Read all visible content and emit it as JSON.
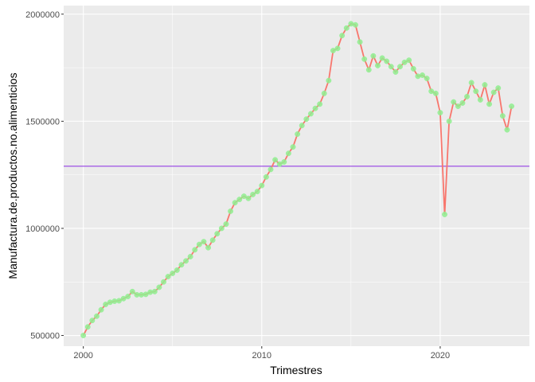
{
  "chart_data": {
    "type": "line",
    "xlabel": "Trimestres",
    "ylabel": "Manufactura.de.productos.no.alimenticios",
    "xlim": [
      1998.9,
      2025.0
    ],
    "ylim": [
      450000,
      2040000
    ],
    "x_ticks": [
      2000,
      2010,
      2020
    ],
    "x_tick_labels": [
      "2000",
      "2010",
      "2020"
    ],
    "y_ticks": [
      500000,
      1000000,
      1500000,
      2000000
    ],
    "y_tick_labels": [
      "500000",
      "1000000",
      "1500000",
      "2000000"
    ],
    "grid": true,
    "reference_line": {
      "y": 1290000,
      "color": "#8a2be2"
    },
    "colors": {
      "panel": "#ebebeb",
      "grid_major": "#ffffff",
      "line": "#f8766d",
      "point": "#90ee90",
      "hline": "#8a2be2"
    },
    "series": [
      {
        "x": [
          2000.0,
          2000.25,
          2000.5,
          2000.75,
          2001.0,
          2001.25,
          2001.5,
          2001.75,
          2002.0,
          2002.25,
          2002.5,
          2002.75,
          2003.0,
          2003.25,
          2003.5,
          2003.75,
          2004.0,
          2004.25,
          2004.5,
          2004.75,
          2005.0,
          2005.25,
          2005.5,
          2005.75,
          2006.0,
          2006.25,
          2006.5,
          2006.75,
          2007.0,
          2007.25,
          2007.5,
          2007.75,
          2008.0,
          2008.25,
          2008.5,
          2008.75,
          2009.0,
          2009.25,
          2009.5,
          2009.75,
          2010.0,
          2010.25,
          2010.5,
          2010.75,
          2011.0,
          2011.25,
          2011.5,
          2011.75,
          2012.0,
          2012.25,
          2012.5,
          2012.75,
          2013.0,
          2013.25,
          2013.5,
          2013.75,
          2014.0,
          2014.25,
          2014.5,
          2014.75,
          2015.0,
          2015.25,
          2015.5,
          2015.75,
          2016.0,
          2016.25,
          2016.5,
          2016.75,
          2017.0,
          2017.25,
          2017.5,
          2017.75,
          2018.0,
          2018.25,
          2018.5,
          2018.75,
          2019.0,
          2019.25,
          2019.5,
          2019.75,
          2020.0,
          2020.25,
          2020.5,
          2020.75,
          2021.0,
          2021.25,
          2021.5,
          2021.75,
          2022.0,
          2022.25,
          2022.5,
          2022.75,
          2023.0,
          2023.25,
          2023.5,
          2023.75,
          2024.0
        ],
        "y": [
          500000,
          540000,
          570000,
          590000,
          620000,
          645000,
          655000,
          660000,
          662000,
          672000,
          682000,
          705000,
          690000,
          690000,
          692000,
          702000,
          705000,
          725000,
          750000,
          775000,
          790000,
          805000,
          830000,
          848000,
          868000,
          900000,
          925000,
          938000,
          910000,
          945000,
          975000,
          1000000,
          1020000,
          1080000,
          1120000,
          1135000,
          1150000,
          1140000,
          1158000,
          1172000,
          1200000,
          1240000,
          1275000,
          1320000,
          1300000,
          1310000,
          1350000,
          1380000,
          1440000,
          1480000,
          1510000,
          1535000,
          1560000,
          1580000,
          1630000,
          1690000,
          1830000,
          1840000,
          1900000,
          1935000,
          1955000,
          1950000,
          1870000,
          1790000,
          1740000,
          1805000,
          1760000,
          1795000,
          1780000,
          1755000,
          1730000,
          1755000,
          1775000,
          1785000,
          1745000,
          1710000,
          1715000,
          1700000,
          1640000,
          1630000,
          1540000,
          1065000,
          1500000,
          1590000,
          1570000,
          1585000,
          1615000,
          1680000,
          1640000,
          1600000,
          1670000,
          1580000,
          1635000,
          1655000,
          1525000,
          1460000,
          1570000
        ]
      }
    ]
  }
}
